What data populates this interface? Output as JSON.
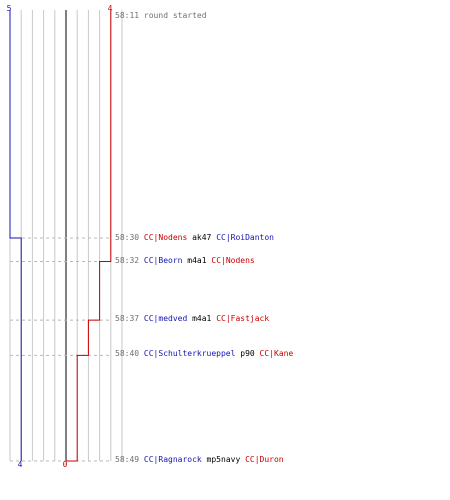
{
  "scores": {
    "blue_start": "5",
    "red_start": "4",
    "blue_end": "4",
    "red_end": "0"
  },
  "colors": {
    "blue": "#1515b0",
    "red": "#c80000",
    "grid": "#c8c8c8",
    "center": "#808080",
    "guide": "#b8b8b8",
    "text": "#707070"
  },
  "timeline": {
    "round_start": "58:11",
    "round_end": "58:49",
    "max_lives": 5,
    "blue_steps": [
      {
        "time": "58:11",
        "alive": 5
      },
      {
        "time": "58:30",
        "alive": 4
      }
    ],
    "red_steps": [
      {
        "time": "58:11",
        "alive": 4
      },
      {
        "time": "58:32",
        "alive": 3
      },
      {
        "time": "58:37",
        "alive": 2
      },
      {
        "time": "58:40",
        "alive": 1
      },
      {
        "time": "58:49",
        "alive": 0
      }
    ]
  },
  "events": [
    {
      "time": "58:11",
      "text": "round started"
    },
    {
      "time": "58:30",
      "killer": "CC|Nodens",
      "killer_team": "red",
      "weapon": "ak47",
      "victim": "CC|RoiDanton",
      "victim_team": "blue"
    },
    {
      "time": "58:32",
      "killer": "CC|Beorn",
      "killer_team": "blue",
      "weapon": "m4a1",
      "victim": "CC|Nodens",
      "victim_team": "red"
    },
    {
      "time": "58:37",
      "killer": "CC|medved",
      "killer_team": "blue",
      "weapon": "m4a1",
      "victim": "CC|Fastjack",
      "victim_team": "red"
    },
    {
      "time": "58:40",
      "killer": "CC|Schulterkrueppel",
      "killer_team": "blue",
      "weapon": "p90",
      "victim": "CC|Kane",
      "victim_team": "red"
    },
    {
      "time": "58:49",
      "killer": "CC|Ragnarock",
      "killer_team": "blue",
      "weapon": "mp5navy",
      "victim": "CC|Duron",
      "victim_team": "red"
    }
  ]
}
